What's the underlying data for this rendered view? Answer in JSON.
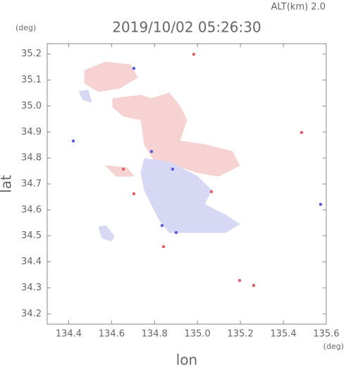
{
  "chart_data": {
    "type": "map",
    "title": "2019/10/02 05:26:30",
    "subtitle": "ALT(km) 2.0",
    "x_label": "lon",
    "y_label": "lat",
    "x_unit": "(deg)",
    "y_unit": "(deg)",
    "xlim": [
      134.3,
      135.6
    ],
    "ylim": [
      34.16,
      35.24
    ],
    "xticks": [
      134.4,
      134.6,
      134.8,
      {
        "value": 135,
        "label": "135.0"
      },
      135.2,
      135.4,
      135.6
    ],
    "yticks": [
      34.2,
      34.3,
      34.4,
      34.5,
      34.6,
      34.7,
      34.8,
      34.9,
      {
        "value": 35,
        "label": "35.0"
      },
      35.1,
      35.2
    ],
    "colors": [
      "#f6d2d2",
      "#d6d8f4",
      "#5a5ae0",
      "#e05a6a"
    ]
  }
}
